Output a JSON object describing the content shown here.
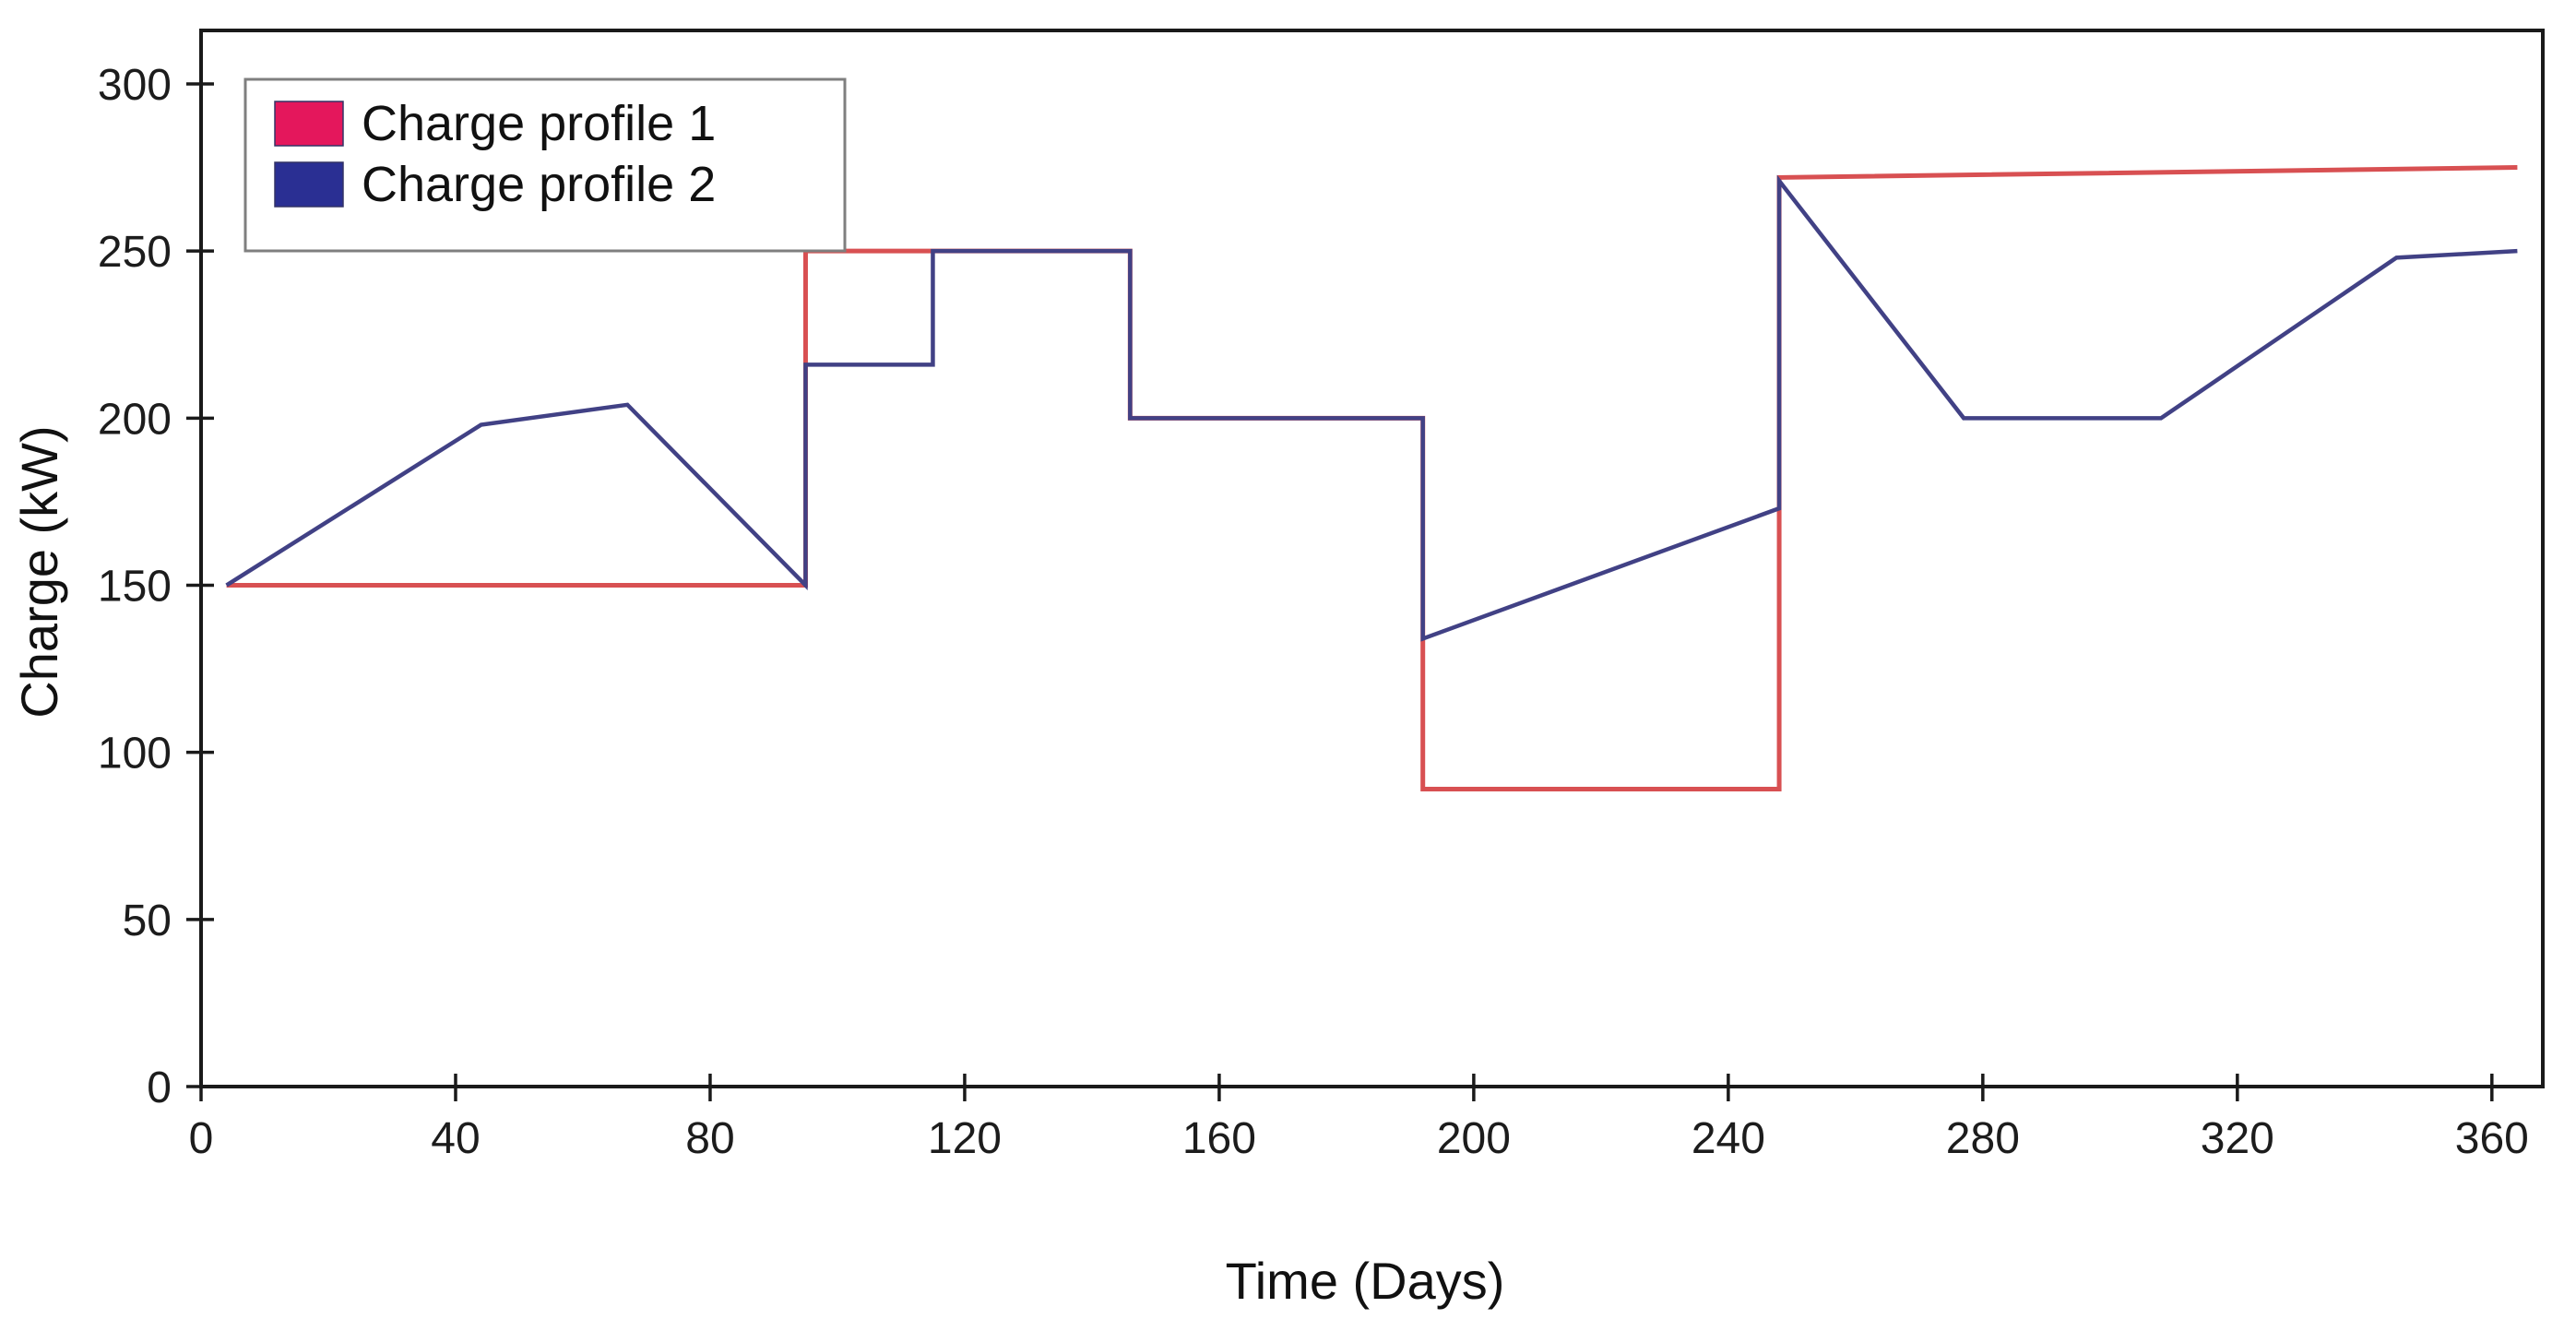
{
  "chart_data": {
    "type": "line",
    "title": "",
    "xlabel": "Time (Days)",
    "ylabel": "Charge (kW)",
    "xlim": [
      0,
      368
    ],
    "ylim": [
      0,
      316
    ],
    "xticks": [
      0,
      40,
      80,
      120,
      160,
      200,
      240,
      280,
      320,
      360
    ],
    "yticks": [
      0,
      50,
      100,
      150,
      200,
      250,
      300
    ],
    "grid": false,
    "legend_position": "upper-left",
    "axis_color": "#1a1a1a",
    "series": [
      {
        "name": "Charge profile 1",
        "line_color": "#d85052",
        "swatch_color": "#e4175c",
        "points": [
          [
            4,
            150
          ],
          [
            95,
            150
          ],
          [
            95,
            250
          ],
          [
            146,
            250
          ],
          [
            146,
            200
          ],
          [
            192,
            200
          ],
          [
            192,
            89
          ],
          [
            248,
            89
          ],
          [
            248,
            272
          ],
          [
            364,
            275
          ]
        ]
      },
      {
        "name": "Charge profile 2",
        "line_color": "#414185",
        "swatch_color": "#2a2f93",
        "points": [
          [
            4,
            150
          ],
          [
            44,
            198
          ],
          [
            67,
            204
          ],
          [
            95,
            150
          ],
          [
            95,
            216
          ],
          [
            115,
            216
          ],
          [
            115,
            250
          ],
          [
            146,
            250
          ],
          [
            146,
            200
          ],
          [
            192,
            200
          ],
          [
            192,
            134
          ],
          [
            248,
            173
          ],
          [
            248,
            271
          ],
          [
            277,
            200
          ],
          [
            308,
            200
          ],
          [
            345,
            248
          ],
          [
            364,
            250
          ]
        ]
      }
    ]
  }
}
